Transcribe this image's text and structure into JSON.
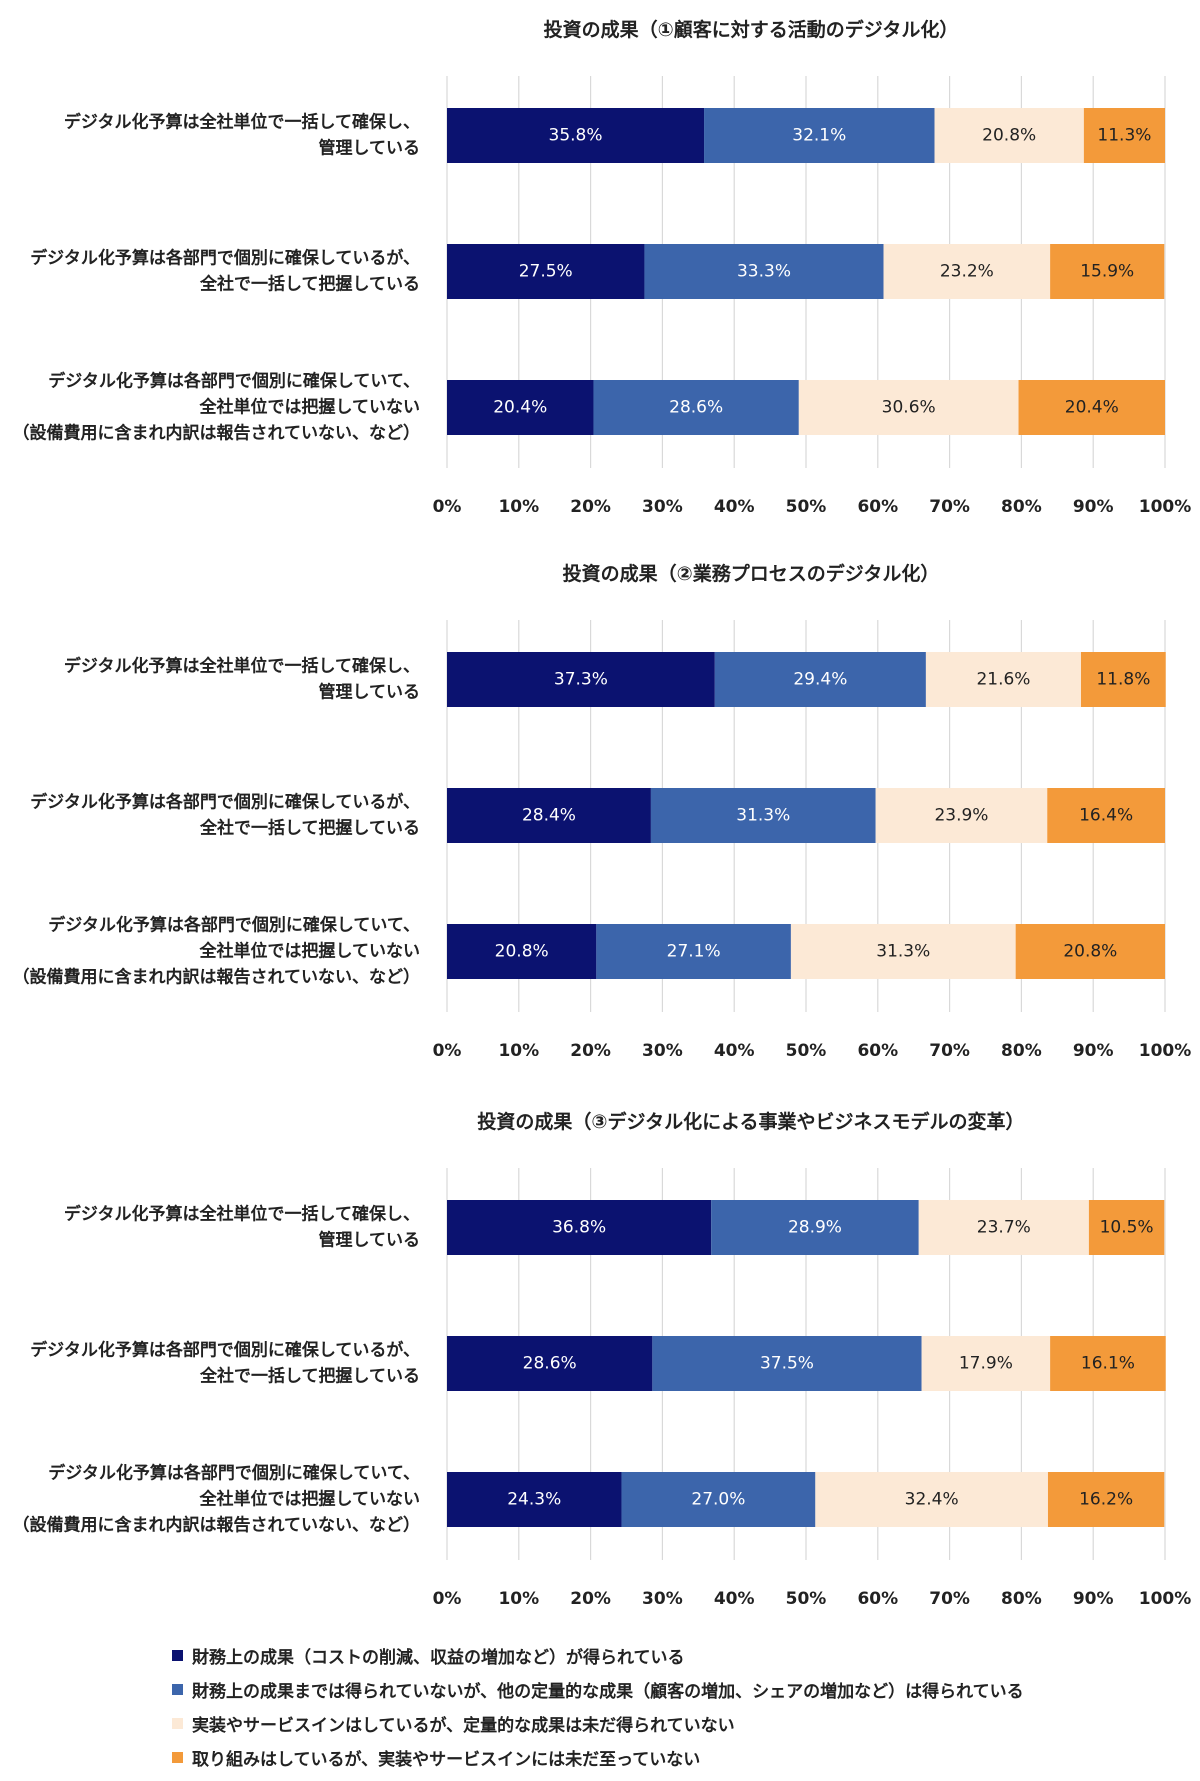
{
  "chart_data": [
    {
      "type": "bar",
      "orientation": "horizontal",
      "stacked": true,
      "title": "投資の成果（①顧客に対する活動のデジタル化）",
      "categories": [
        "デジタル化予算は全社単位で一括して確保し、\n管理している",
        "デジタル化予算は各部門で個別に確保しているが、\n全社で一括して把握している",
        "デジタル化予算は各部門で個別に確保していて、\n全社単位では把握していない\n（設備費用に含まれ内訳は報告されていない、など）"
      ],
      "series": [
        {
          "values": [
            35.8,
            27.5,
            20.4
          ]
        },
        {
          "values": [
            32.1,
            33.3,
            28.6
          ]
        },
        {
          "values": [
            20.8,
            23.2,
            30.6
          ]
        },
        {
          "values": [
            11.3,
            15.9,
            20.4
          ]
        }
      ],
      "xlim": [
        0,
        100
      ],
      "xticks": [
        "0%",
        "10%",
        "20%",
        "30%",
        "40%",
        "50%",
        "60%",
        "70%",
        "80%",
        "90%",
        "100%"
      ],
      "grid": true
    },
    {
      "type": "bar",
      "orientation": "horizontal",
      "stacked": true,
      "title": "投資の成果（②業務プロセスのデジタル化）",
      "categories": [
        "デジタル化予算は全社単位で一括して確保し、\n管理している",
        "デジタル化予算は各部門で個別に確保しているが、\n全社で一括して把握している",
        "デジタル化予算は各部門で個別に確保していて、\n全社単位では把握していない\n（設備費用に含まれ内訳は報告されていない、など）"
      ],
      "series": [
        {
          "values": [
            37.3,
            28.4,
            20.8
          ]
        },
        {
          "values": [
            29.4,
            31.3,
            27.1
          ]
        },
        {
          "values": [
            21.6,
            23.9,
            31.3
          ]
        },
        {
          "values": [
            11.8,
            16.4,
            20.8
          ]
        }
      ],
      "xlim": [
        0,
        100
      ],
      "xticks": [
        "0%",
        "10%",
        "20%",
        "30%",
        "40%",
        "50%",
        "60%",
        "70%",
        "80%",
        "90%",
        "100%"
      ],
      "grid": true
    },
    {
      "type": "bar",
      "orientation": "horizontal",
      "stacked": true,
      "title": "投資の成果（③デジタル化による事業やビジネスモデルの変革）",
      "categories": [
        "デジタル化予算は全社単位で一括して確保し、\n管理している",
        "デジタル化予算は各部門で個別に確保しているが、\n全社で一括して把握している",
        "デジタル化予算は各部門で個別に確保していて、\n全社単位では把握していない\n（設備費用に含まれ内訳は報告されていない、など）"
      ],
      "series": [
        {
          "values": [
            36.8,
            28.6,
            24.3
          ]
        },
        {
          "values": [
            28.9,
            37.5,
            27.0
          ]
        },
        {
          "values": [
            23.7,
            17.9,
            32.4
          ]
        },
        {
          "values": [
            10.5,
            16.1,
            16.2
          ]
        }
      ],
      "xlim": [
        0,
        100
      ],
      "xticks": [
        "0%",
        "10%",
        "20%",
        "30%",
        "40%",
        "50%",
        "60%",
        "70%",
        "80%",
        "90%",
        "100%"
      ],
      "grid": true
    }
  ],
  "legend": {
    "placement": "bottom",
    "items": [
      {
        "label": "財務上の成果（コストの削減、収益の増加など）が得られている",
        "color": "#0b1270",
        "text_color": "#ffffff"
      },
      {
        "label": "財務上の成果までは得られていないが、他の定量的な成果（顧客の増加、シェアの増加など）は得られている",
        "color": "#3c65ab",
        "text_color": "#ffffff"
      },
      {
        "label": "実装やサービスインはしているが、定量的な成果は未だ得られていない",
        "color": "#fce9d6",
        "text_color": "#222222"
      },
      {
        "label": "取り組みはしているが、実装やサービスインには未だ至っていない",
        "color": "#f39a3a",
        "text_color": "#222222"
      }
    ]
  }
}
